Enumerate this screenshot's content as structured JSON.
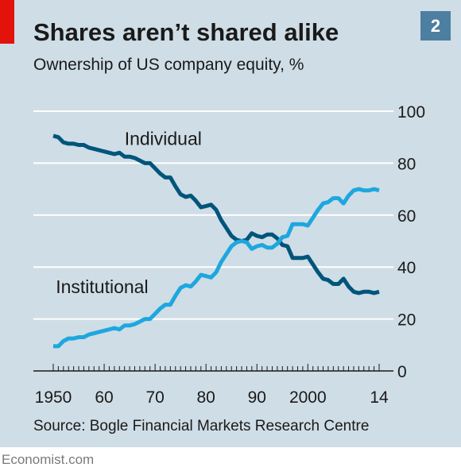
{
  "header": {
    "title": "Shares aren’t shared alike",
    "subtitle": "Ownership of US company equity, %",
    "badge": "2"
  },
  "footer": {
    "source": "Source: Bogle Financial Markets Research Centre",
    "brand": "Economist.com"
  },
  "colors": {
    "background": "#cfdde6",
    "individual": "#00557a",
    "institutional": "#1ea7de",
    "accent": "#e3120b",
    "badge": "#4d7fa0"
  },
  "chart_data": {
    "type": "line",
    "title": "Shares aren’t shared alike",
    "subtitle": "Ownership of US company equity, %",
    "xlim": [
      1950,
      2014
    ],
    "ylim": [
      0,
      100
    ],
    "y_ticks": [
      0,
      20,
      40,
      60,
      80,
      100
    ],
    "y_tick_labels": [
      "0",
      "20",
      "40",
      "60",
      "80",
      "100"
    ],
    "x_ticks": [
      1950,
      1960,
      1970,
      1980,
      1990,
      2000,
      2014
    ],
    "x_tick_labels": [
      "1950",
      "60",
      "70",
      "80",
      "90",
      "2000",
      "14"
    ],
    "y_axis_position": "right",
    "grid": true,
    "x": [
      1950,
      1951,
      1952,
      1953,
      1954,
      1955,
      1956,
      1957,
      1958,
      1959,
      1960,
      1961,
      1962,
      1963,
      1964,
      1965,
      1966,
      1967,
      1968,
      1969,
      1970,
      1971,
      1972,
      1973,
      1974,
      1975,
      1976,
      1977,
      1978,
      1979,
      1980,
      1981,
      1982,
      1983,
      1984,
      1985,
      1986,
      1987,
      1988,
      1989,
      1990,
      1991,
      1992,
      1993,
      1994,
      1995,
      1996,
      1997,
      1998,
      1999,
      2000,
      2001,
      2002,
      2003,
      2004,
      2005,
      2006,
      2007,
      2008,
      2009,
      2010,
      2011,
      2012,
      2013,
      2014
    ],
    "series": [
      {
        "name": "Individual",
        "values": [
          90.5,
          90,
          88,
          87.5,
          87.5,
          87,
          87,
          86,
          85.5,
          85,
          84.5,
          84,
          83.5,
          84,
          82.5,
          82.5,
          82,
          81,
          80,
          80,
          78,
          76,
          74.5,
          74.5,
          71,
          68,
          67,
          67.5,
          65.5,
          63,
          63.5,
          64,
          62,
          58,
          55,
          52,
          50.5,
          50,
          50.5,
          53,
          52,
          51.5,
          52.5,
          52.5,
          51,
          48.5,
          48,
          43.5,
          43.5,
          43.5,
          44,
          41,
          38,
          35.5,
          35,
          33.5,
          33.5,
          35.5,
          32.5,
          30.5,
          30,
          30.5,
          30.5,
          30,
          30.5
        ]
      },
      {
        "name": "Institutional",
        "values": [
          9.5,
          9.5,
          11.5,
          12.5,
          12.5,
          13,
          13,
          14,
          14.5,
          15,
          15.5,
          16,
          16.5,
          16,
          17.5,
          17.5,
          18,
          19,
          20,
          20,
          22,
          24,
          25.5,
          25.5,
          29,
          32,
          33,
          32.5,
          34.5,
          37,
          36.5,
          36,
          38,
          42,
          45,
          48,
          49.5,
          50,
          49.5,
          47,
          48,
          48.5,
          47.5,
          47.5,
          49,
          51.5,
          52,
          56.5,
          56.5,
          56.5,
          56,
          59,
          62,
          64.5,
          65,
          66.5,
          66.5,
          64.5,
          67.5,
          69.5,
          70,
          69.5,
          69.5,
          70,
          69.5
        ]
      }
    ],
    "annotations": [
      {
        "text": "Individual",
        "x": 1964,
        "y": 87,
        "series": "Individual"
      },
      {
        "text": "Institutional",
        "x": 1950.5,
        "y": 30,
        "series": "Institutional"
      }
    ]
  }
}
